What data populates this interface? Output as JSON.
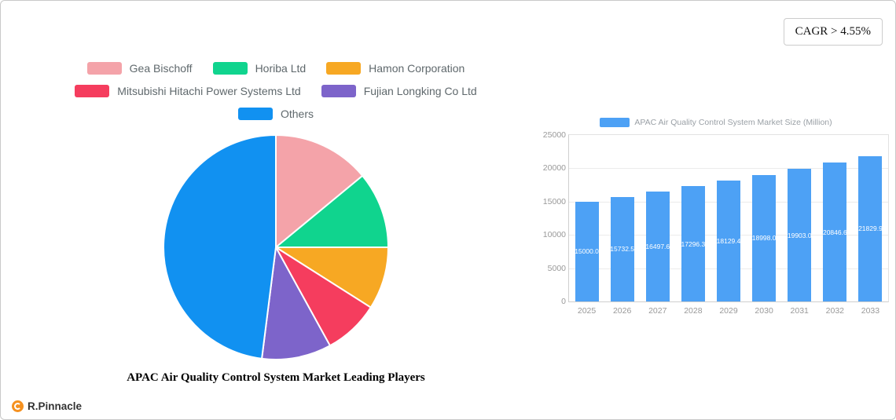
{
  "cagr_badge": "CAGR > 4.55%",
  "logo_text": "R.Pinnacle",
  "chart_data": [
    {
      "type": "pie",
      "title": "APAC Air Quality Control System Market Leading Players",
      "legend_rows": [
        [
          0,
          1,
          2
        ],
        [
          3,
          4
        ],
        [
          5
        ]
      ],
      "legend_position": "top",
      "slices": [
        {
          "label": "Gea Bischoff",
          "value": 14,
          "color": "#f4a3a9"
        },
        {
          "label": "Horiba Ltd",
          "value": 11,
          "color": "#10d48e"
        },
        {
          "label": "Hamon Corporation",
          "value": 9,
          "color": "#f7a823"
        },
        {
          "label": "Mitsubishi Hitachi Power Systems Ltd",
          "value": 8,
          "color": "#f53d5e"
        },
        {
          "label": "Fujian Longking Co  Ltd",
          "value": 10,
          "color": "#7d64ca"
        },
        {
          "label": "Others",
          "value": 48,
          "color": "#1191f1"
        }
      ]
    },
    {
      "type": "bar",
      "legend": "APAC Air Quality Control System Market Size (Million)",
      "categories": [
        "2025",
        "2026",
        "2027",
        "2028",
        "2029",
        "2030",
        "2031",
        "2032",
        "2033"
      ],
      "values": [
        15000.0,
        15732.5,
        16497.6,
        17296.3,
        18129.4,
        18998.0,
        19903.0,
        20846.6,
        21829.9
      ],
      "value_labels": [
        "15000.0",
        "15732.5",
        "16497.6",
        "17296.3",
        "18129.4",
        "18998.0",
        "19903.0",
        "20846.6",
        "21829.9"
      ],
      "bar_color": "#4da1f5",
      "ylim": [
        0,
        25000
      ],
      "yticks": [
        0,
        5000,
        10000,
        15000,
        20000,
        25000
      ],
      "grid": true,
      "legend_position": "top"
    }
  ]
}
